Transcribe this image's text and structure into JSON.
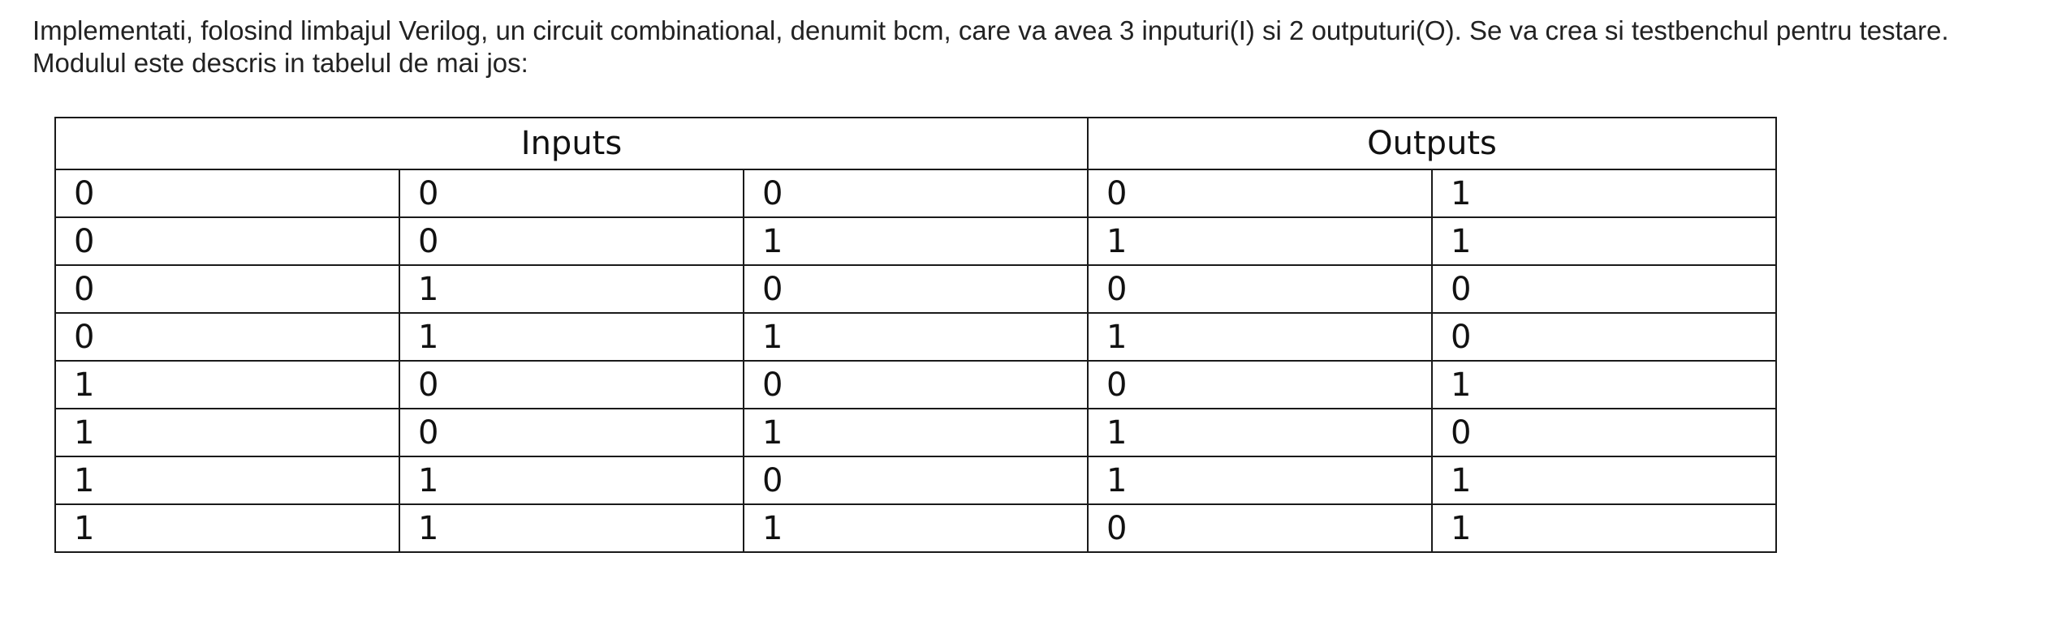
{
  "intro_text": "Implementati, folosind limbajul Verilog, un circuit combinational, denumit bcm, care va avea 3 inputuri(I) si 2 outputuri(O). Se va crea si testbenchul pentru testare. Modulul este descris in tabelul de mai jos:",
  "table": {
    "headers": {
      "inputs": "Inputs",
      "outputs": "Outputs"
    },
    "rows": [
      [
        "0",
        "0",
        "0",
        "0",
        "1"
      ],
      [
        "0",
        "0",
        "1",
        "1",
        "1"
      ],
      [
        "0",
        "1",
        "0",
        "0",
        "0"
      ],
      [
        "0",
        "1",
        "1",
        "1",
        "0"
      ],
      [
        "1",
        "0",
        "0",
        "0",
        "1"
      ],
      [
        "1",
        "0",
        "1",
        "1",
        "0"
      ],
      [
        "1",
        "1",
        "0",
        "1",
        "1"
      ],
      [
        "1",
        "1",
        "1",
        "0",
        "1"
      ]
    ]
  }
}
